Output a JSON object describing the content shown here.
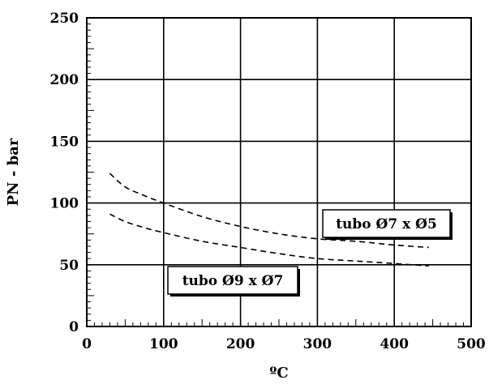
{
  "chart_data": {
    "type": "line",
    "title": "",
    "xlabel": "ºC",
    "ylabel": "PN - bar",
    "xlim": [
      0,
      500
    ],
    "ylim": [
      0,
      250
    ],
    "x_ticks": [
      0,
      100,
      200,
      300,
      400,
      500
    ],
    "y_ticks": [
      0,
      50,
      100,
      150,
      200,
      250
    ],
    "grid": true,
    "line_style": "dashed",
    "series": [
      {
        "name": "tubo Ø7 x Ø5",
        "x": [
          30,
          50,
          75,
          100,
          150,
          200,
          250,
          300,
          350,
          400,
          445
        ],
        "y": [
          124,
          113,
          106,
          100,
          89,
          81,
          75,
          71,
          69,
          66,
          64
        ]
      },
      {
        "name": "tubo Ø9 x Ø7",
        "x": [
          30,
          50,
          75,
          100,
          150,
          200,
          250,
          300,
          350,
          400,
          445
        ],
        "y": [
          91,
          85,
          80,
          76,
          69,
          64,
          59,
          55,
          53,
          51,
          49
        ]
      }
    ]
  }
}
